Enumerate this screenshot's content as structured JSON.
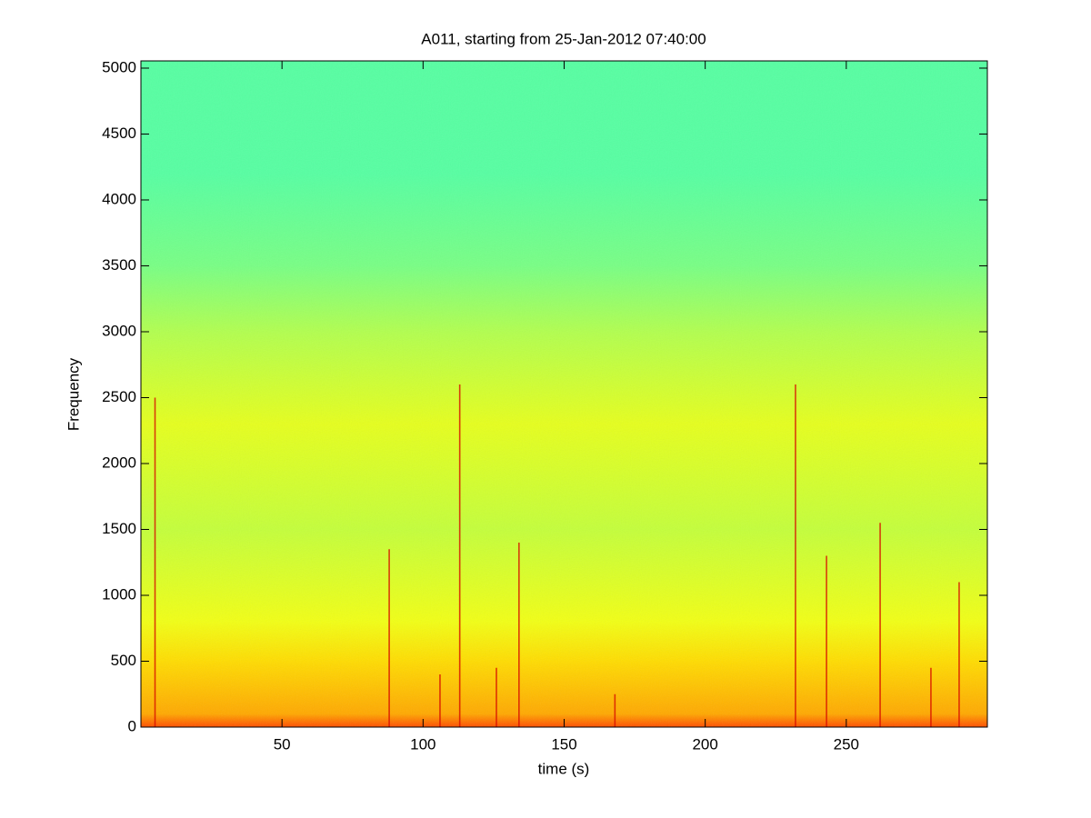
{
  "chart_data": {
    "type": "spectrogram",
    "title": "A011, starting from 25-Jan-2012 07:40:00",
    "xlabel": "time (s)",
    "ylabel": "Frequency",
    "xlim": [
      0,
      300
    ],
    "ylim": [
      0,
      5055
    ],
    "xticks": [
      50,
      100,
      150,
      200,
      250
    ],
    "yticks": [
      0,
      500,
      1000,
      1500,
      2000,
      2500,
      3000,
      3500,
      4000,
      4500,
      5000
    ],
    "bands": {
      "edges": [
        0,
        100,
        500,
        800,
        1500,
        2300,
        3000,
        3500,
        4200,
        5055
      ],
      "colors": [
        "#ff4a00",
        "#ffa800",
        "#ffdc00",
        "#f2ff14",
        "#c4ff3a",
        "#e6ff1c",
        "#b2ff4e",
        "#78ff84",
        "#56ffa2"
      ]
    },
    "transients": {
      "color": "#d81000",
      "time": [
        5,
        88,
        106,
        113,
        126,
        134,
        168,
        232,
        243,
        262,
        280,
        290
      ],
      "top": [
        2500,
        1350,
        400,
        2600,
        450,
        1400,
        250,
        2600,
        1300,
        1550,
        450,
        1100
      ]
    }
  }
}
